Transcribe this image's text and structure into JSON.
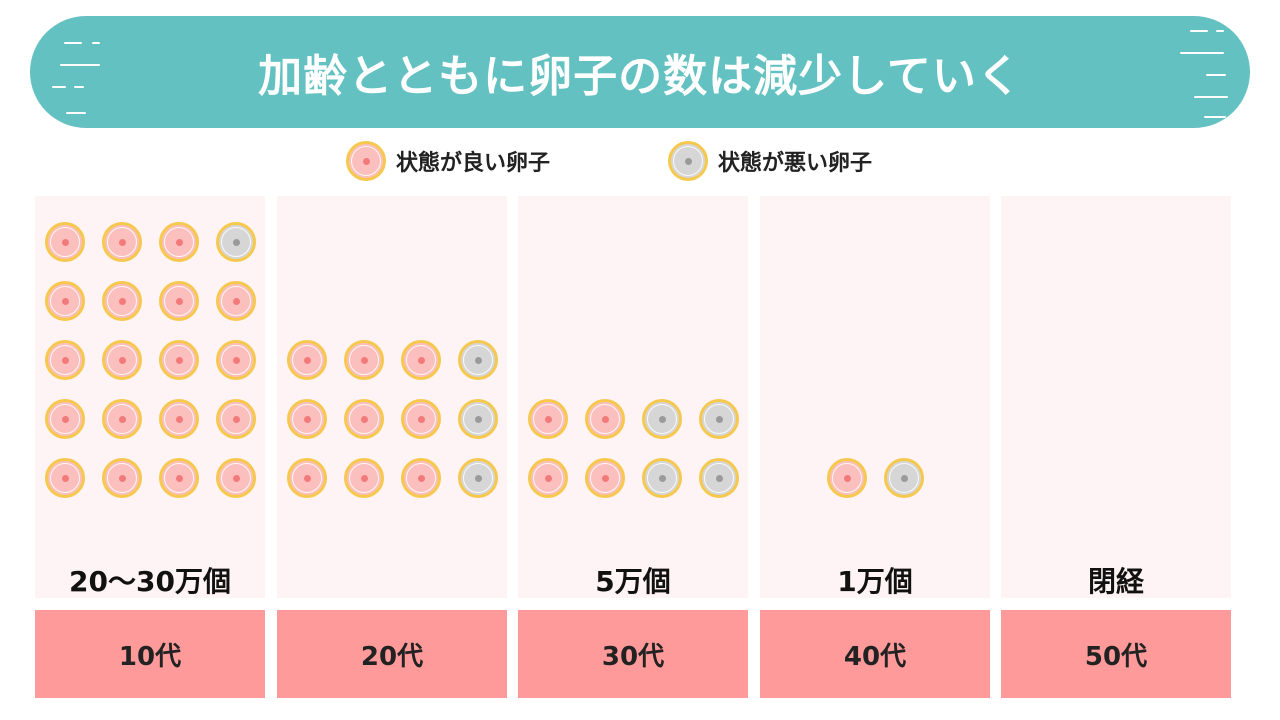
{
  "title": "加齢とともに卵子の数は減少していく",
  "legend": {
    "good_label": "状態が良い卵子",
    "bad_label": "状態が悪い卵子"
  },
  "columns": [
    {
      "age": "10代",
      "count_label": "20〜30万個",
      "eggs": [
        [
          "good",
          "good",
          "good",
          "bad"
        ],
        [
          "good",
          "good",
          "good",
          "good"
        ],
        [
          "good",
          "good",
          "good",
          "good"
        ],
        [
          "good",
          "good",
          "good",
          "good"
        ],
        [
          "good",
          "good",
          "good",
          "good"
        ]
      ]
    },
    {
      "age": "20代",
      "count_label": "",
      "eggs": [
        [
          "good",
          "good",
          "good",
          "bad"
        ],
        [
          "good",
          "good",
          "good",
          "bad"
        ],
        [
          "good",
          "good",
          "good",
          "bad"
        ]
      ]
    },
    {
      "age": "30代",
      "count_label": "5万個",
      "eggs": [
        [
          "good",
          "good",
          "bad",
          "bad"
        ],
        [
          "good",
          "good",
          "bad",
          "bad"
        ]
      ]
    },
    {
      "age": "40代",
      "count_label": "1万個",
      "eggs": [
        [
          "good",
          "bad"
        ]
      ]
    },
    {
      "age": "50代",
      "count_label": "閉経",
      "eggs": []
    }
  ],
  "colors": {
    "banner": "#63c1c1",
    "good_egg": "#fbc0bd",
    "bad_egg": "#d6d6d6",
    "egg_border": "#f6c94e",
    "age_box": "#fe9a9a",
    "column_bg": "#fff4f5"
  }
}
